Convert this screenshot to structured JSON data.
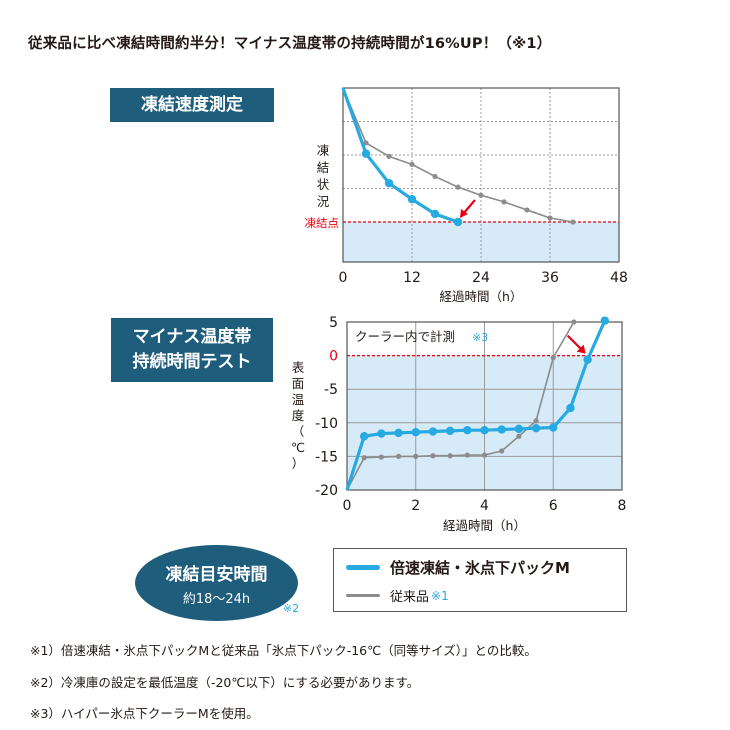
{
  "headline": "従来品に比べ凍結時間約半分！マイナス温度帯の持続時間が16%UP！（※1）",
  "chart1_label": "凍結速度測定",
  "chart2_label_line1": "マイナス温度帯",
  "chart2_label_line2": "持続時間テスト",
  "oval": {
    "title": "凍結目安時間",
    "sub": "約18〜24h",
    "note": "※2"
  },
  "legend": {
    "new_label": "倍速凍結・氷点下パックM",
    "old_label": "従来品",
    "old_note": "※1"
  },
  "footnotes": [
    "※1）倍速凍結・氷点下パックMと従来品「氷点下パック-16℃（同等サイズ）」との比較。",
    "※2）冷凍庫の設定を最低温度（-20℃以下）にする必要があります。",
    "※3）ハイパー氷点下クーラーMを使用。"
  ],
  "colors": {
    "new": "#27a9e1",
    "old": "#8c8c8c",
    "accent": "#e60012",
    "navy": "#1f5d7d",
    "fill": "#d6ebf7"
  },
  "chart_data": [
    {
      "type": "line",
      "title": "",
      "xlabel": "経過時間（h）",
      "ylabel": "凍結状況",
      "xlim": [
        0,
        48
      ],
      "xticks": [
        0,
        12,
        24,
        36,
        48
      ],
      "ylim": [
        0,
        1
      ],
      "threshold_label": "凍結点",
      "threshold_value": 0,
      "grid": true,
      "series": [
        {
          "name": "倍速凍結・氷点下パックM",
          "color": "#27a9e1",
          "points": [
            [
              0,
              1
            ],
            [
              4,
              0.51
            ],
            [
              8,
              0.29
            ],
            [
              12,
              0.17
            ],
            [
              16,
              0.06
            ],
            [
              20,
              0
            ]
          ]
        },
        {
          "name": "従来品",
          "color": "#8c8c8c",
          "points": [
            [
              0,
              1
            ],
            [
              4,
              0.59
            ],
            [
              8,
              0.49
            ],
            [
              12,
              0.43
            ],
            [
              16,
              0.34
            ],
            [
              20,
              0.26
            ],
            [
              24,
              0.2
            ],
            [
              28,
              0.15
            ],
            [
              32,
              0.09
            ],
            [
              36,
              0.03
            ],
            [
              40,
              0
            ]
          ]
        }
      ]
    },
    {
      "type": "line",
      "title": "",
      "annotation": "クーラー内で計測",
      "annotation_note": "※3",
      "xlabel": "経過時間（h）",
      "ylabel": "表面温度（℃）",
      "xlim": [
        0,
        8
      ],
      "xticks": [
        0,
        2,
        4,
        6,
        8
      ],
      "ylim": [
        -20,
        5
      ],
      "yticks": [
        5,
        0,
        -5,
        -10,
        -15,
        -20
      ],
      "threshold_value": 0,
      "grid": true,
      "series": [
        {
          "name": "倍速凍結・氷点下パックM",
          "color": "#27a9e1",
          "points": [
            [
              0,
              -20
            ],
            [
              0.5,
              -12
            ],
            [
              1,
              -11.6
            ],
            [
              1.5,
              -11.5
            ],
            [
              2,
              -11.4
            ],
            [
              2.5,
              -11.3
            ],
            [
              3,
              -11.2
            ],
            [
              3.5,
              -11.1
            ],
            [
              4,
              -11.1
            ],
            [
              4.5,
              -11
            ],
            [
              5,
              -10.9
            ],
            [
              5.5,
              -10.8
            ],
            [
              6,
              -10.7
            ],
            [
              6.5,
              -7.8
            ],
            [
              7,
              -0.6
            ],
            [
              7.5,
              5.2
            ]
          ]
        },
        {
          "name": "従来品",
          "color": "#8c8c8c",
          "points": [
            [
              0,
              -20
            ],
            [
              0.5,
              -15.2
            ],
            [
              1,
              -15.1
            ],
            [
              1.5,
              -15
            ],
            [
              2,
              -15
            ],
            [
              2.5,
              -14.9
            ],
            [
              3,
              -14.9
            ],
            [
              3.5,
              -14.8
            ],
            [
              4,
              -14.8
            ],
            [
              4.5,
              -14.2
            ],
            [
              5,
              -12
            ],
            [
              5.5,
              -9.7
            ],
            [
              6,
              -0.3
            ],
            [
              6.6,
              5
            ]
          ]
        }
      ]
    }
  ]
}
